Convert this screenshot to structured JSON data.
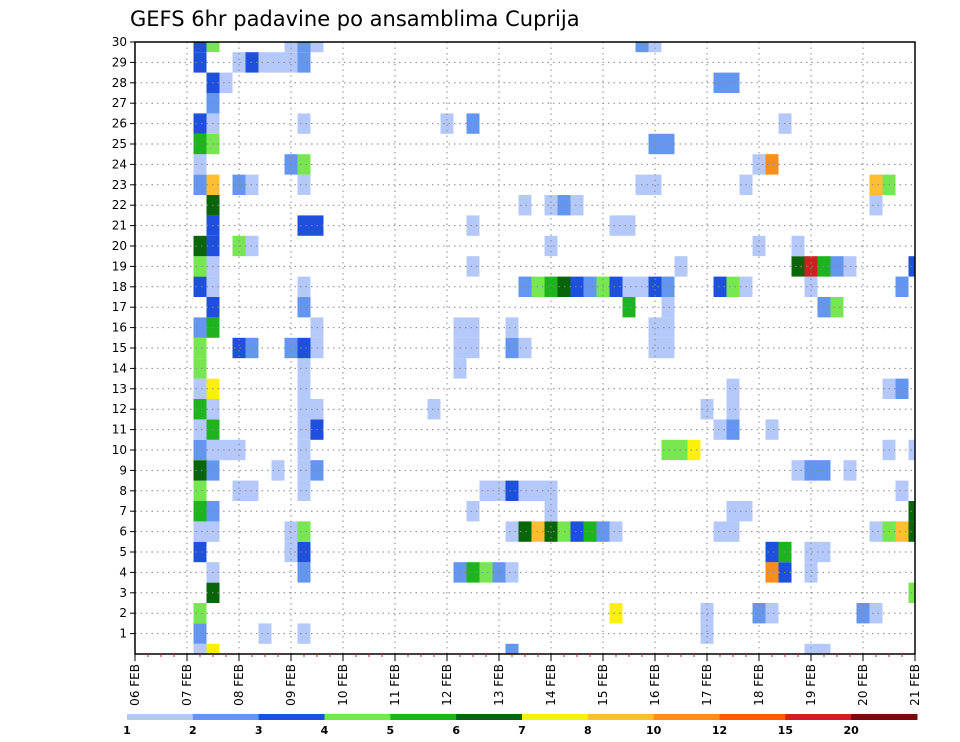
{
  "chart_data": {
    "type": "heatmap",
    "title": "GEFS 6hr padavine po ansamblima Cuprija",
    "xlabel": "",
    "ylabel": "",
    "x_ticks": [
      "06 FEB",
      "07 FEB",
      "08 FEB",
      "09 FEB",
      "10 FEB",
      "11 FEB",
      "12 FEB",
      "13 FEB",
      "14 FEB",
      "15 FEB",
      "16 FEB",
      "17 FEB",
      "18 FEB",
      "19 FEB",
      "20 FEB",
      "21 FEB"
    ],
    "y_ticks": [
      "1",
      "2",
      "3",
      "4",
      "5",
      "6",
      "7",
      "8",
      "9",
      "10",
      "11",
      "12",
      "13",
      "14",
      "15",
      "16",
      "17",
      "18",
      "19",
      "20",
      "21",
      "22",
      "23",
      "24",
      "25",
      "26",
      "27",
      "28",
      "29",
      "30"
    ],
    "xlim_steps": [
      0,
      60
    ],
    "ylim_members": [
      0,
      30
    ],
    "grid": true,
    "legend": {
      "placement": "bottom",
      "thresholds": [
        "1",
        "2",
        "3",
        "4",
        "5",
        "6",
        "7",
        "8",
        "10",
        "12",
        "15",
        "20"
      ],
      "colors": [
        "#b4c8fa",
        "#6496f0",
        "#1e50dc",
        "#78e650",
        "#1eb41e",
        "#0a640a",
        "#faf00a",
        "#ffbe32",
        "#ff8c1e",
        "#ff5a0a",
        "#d21e1e",
        "#780a0a"
      ]
    },
    "cells": [
      {
        "t": 5,
        "m": 0,
        "c": 1
      },
      {
        "t": 6,
        "m": 0,
        "c": 7
      },
      {
        "t": 29,
        "m": 0,
        "c": 2
      },
      {
        "t": 52,
        "m": 0,
        "c": 1
      },
      {
        "t": 53,
        "m": 0,
        "c": 1
      },
      {
        "t": 5,
        "m": 1,
        "c": 2
      },
      {
        "t": 10,
        "m": 1,
        "c": 1
      },
      {
        "t": 13,
        "m": 1,
        "c": 1
      },
      {
        "t": 44,
        "m": 1,
        "c": 1
      },
      {
        "t": 5,
        "m": 2,
        "c": 4
      },
      {
        "t": 37,
        "m": 2,
        "c": 7
      },
      {
        "t": 44,
        "m": 2,
        "c": 1
      },
      {
        "t": 48,
        "m": 2,
        "c": 2
      },
      {
        "t": 49,
        "m": 2,
        "c": 1
      },
      {
        "t": 56,
        "m": 2,
        "c": 2
      },
      {
        "t": 57,
        "m": 2,
        "c": 1
      },
      {
        "t": 6,
        "m": 3,
        "c": 6
      },
      {
        "t": 60,
        "m": 3,
        "c": 4
      },
      {
        "t": 6,
        "m": 4,
        "c": 1
      },
      {
        "t": 13,
        "m": 4,
        "c": 2
      },
      {
        "t": 25,
        "m": 4,
        "c": 2
      },
      {
        "t": 26,
        "m": 4,
        "c": 5
      },
      {
        "t": 27,
        "m": 4,
        "c": 4
      },
      {
        "t": 28,
        "m": 4,
        "c": 2
      },
      {
        "t": 29,
        "m": 4,
        "c": 1
      },
      {
        "t": 49,
        "m": 4,
        "c": 9
      },
      {
        "t": 50,
        "m": 4,
        "c": 3
      },
      {
        "t": 52,
        "m": 4,
        "c": 1
      },
      {
        "t": 5,
        "m": 5,
        "c": 3
      },
      {
        "t": 12,
        "m": 5,
        "c": 1
      },
      {
        "t": 13,
        "m": 5,
        "c": 3
      },
      {
        "t": 49,
        "m": 5,
        "c": 3
      },
      {
        "t": 50,
        "m": 5,
        "c": 5
      },
      {
        "t": 52,
        "m": 5,
        "c": 1
      },
      {
        "t": 53,
        "m": 5,
        "c": 1
      },
      {
        "t": 5,
        "m": 6,
        "c": 1
      },
      {
        "t": 6,
        "m": 6,
        "c": 1
      },
      {
        "t": 12,
        "m": 6,
        "c": 1
      },
      {
        "t": 13,
        "m": 6,
        "c": 4
      },
      {
        "t": 29,
        "m": 6,
        "c": 1
      },
      {
        "t": 30,
        "m": 6,
        "c": 6
      },
      {
        "t": 31,
        "m": 6,
        "c": 8
      },
      {
        "t": 32,
        "m": 6,
        "c": 6
      },
      {
        "t": 33,
        "m": 6,
        "c": 4
      },
      {
        "t": 34,
        "m": 6,
        "c": 3
      },
      {
        "t": 35,
        "m": 6,
        "c": 5
      },
      {
        "t": 36,
        "m": 6,
        "c": 2
      },
      {
        "t": 37,
        "m": 6,
        "c": 1
      },
      {
        "t": 45,
        "m": 6,
        "c": 1
      },
      {
        "t": 46,
        "m": 6,
        "c": 1
      },
      {
        "t": 57,
        "m": 6,
        "c": 1
      },
      {
        "t": 58,
        "m": 6,
        "c": 4
      },
      {
        "t": 59,
        "m": 6,
        "c": 8
      },
      {
        "t": 60,
        "m": 6,
        "c": 6
      },
      {
        "t": 5,
        "m": 7,
        "c": 5
      },
      {
        "t": 6,
        "m": 7,
        "c": 2
      },
      {
        "t": 26,
        "m": 7,
        "c": 1
      },
      {
        "t": 32,
        "m": 7,
        "c": 1
      },
      {
        "t": 46,
        "m": 7,
        "c": 1
      },
      {
        "t": 47,
        "m": 7,
        "c": 1
      },
      {
        "t": 60,
        "m": 7,
        "c": 6
      },
      {
        "t": 5,
        "m": 8,
        "c": 4
      },
      {
        "t": 8,
        "m": 8,
        "c": 1
      },
      {
        "t": 9,
        "m": 8,
        "c": 1
      },
      {
        "t": 13,
        "m": 8,
        "c": 1
      },
      {
        "t": 27,
        "m": 8,
        "c": 1
      },
      {
        "t": 28,
        "m": 8,
        "c": 1
      },
      {
        "t": 29,
        "m": 8,
        "c": 3
      },
      {
        "t": 30,
        "m": 8,
        "c": 1
      },
      {
        "t": 31,
        "m": 8,
        "c": 1
      },
      {
        "t": 32,
        "m": 8,
        "c": 1
      },
      {
        "t": 59,
        "m": 8,
        "c": 1
      },
      {
        "t": 5,
        "m": 9,
        "c": 6
      },
      {
        "t": 6,
        "m": 9,
        "c": 2
      },
      {
        "t": 11,
        "m": 9,
        "c": 1
      },
      {
        "t": 13,
        "m": 9,
        "c": 1
      },
      {
        "t": 14,
        "m": 9,
        "c": 2
      },
      {
        "t": 51,
        "m": 9,
        "c": 1
      },
      {
        "t": 52,
        "m": 9,
        "c": 2
      },
      {
        "t": 53,
        "m": 9,
        "c": 2
      },
      {
        "t": 55,
        "m": 9,
        "c": 1
      },
      {
        "t": 5,
        "m": 10,
        "c": 2
      },
      {
        "t": 6,
        "m": 10,
        "c": 1
      },
      {
        "t": 7,
        "m": 10,
        "c": 1
      },
      {
        "t": 8,
        "m": 10,
        "c": 1
      },
      {
        "t": 13,
        "m": 10,
        "c": 1
      },
      {
        "t": 41,
        "m": 10,
        "c": 4
      },
      {
        "t": 42,
        "m": 10,
        "c": 4
      },
      {
        "t": 43,
        "m": 10,
        "c": 7
      },
      {
        "t": 58,
        "m": 10,
        "c": 1
      },
      {
        "t": 60,
        "m": 10,
        "c": 1
      },
      {
        "t": 5,
        "m": 11,
        "c": 1
      },
      {
        "t": 6,
        "m": 11,
        "c": 5
      },
      {
        "t": 13,
        "m": 11,
        "c": 1
      },
      {
        "t": 14,
        "m": 11,
        "c": 3
      },
      {
        "t": 45,
        "m": 11,
        "c": 1
      },
      {
        "t": 46,
        "m": 11,
        "c": 2
      },
      {
        "t": 49,
        "m": 11,
        "c": 1
      },
      {
        "t": 5,
        "m": 12,
        "c": 5
      },
      {
        "t": 6,
        "m": 12,
        "c": 1
      },
      {
        "t": 13,
        "m": 12,
        "c": 1
      },
      {
        "t": 14,
        "m": 12,
        "c": 1
      },
      {
        "t": 23,
        "m": 12,
        "c": 1
      },
      {
        "t": 44,
        "m": 12,
        "c": 1
      },
      {
        "t": 46,
        "m": 12,
        "c": 1
      },
      {
        "t": 5,
        "m": 13,
        "c": 1
      },
      {
        "t": 6,
        "m": 13,
        "c": 7
      },
      {
        "t": 13,
        "m": 13,
        "c": 1
      },
      {
        "t": 46,
        "m": 13,
        "c": 1
      },
      {
        "t": 58,
        "m": 13,
        "c": 1
      },
      {
        "t": 59,
        "m": 13,
        "c": 2
      },
      {
        "t": 5,
        "m": 14,
        "c": 4
      },
      {
        "t": 13,
        "m": 14,
        "c": 1
      },
      {
        "t": 25,
        "m": 14,
        "c": 1
      },
      {
        "t": 5,
        "m": 15,
        "c": 4
      },
      {
        "t": 8,
        "m": 15,
        "c": 3
      },
      {
        "t": 9,
        "m": 15,
        "c": 2
      },
      {
        "t": 12,
        "m": 15,
        "c": 2
      },
      {
        "t": 13,
        "m": 15,
        "c": 3
      },
      {
        "t": 14,
        "m": 15,
        "c": 1
      },
      {
        "t": 25,
        "m": 15,
        "c": 1
      },
      {
        "t": 26,
        "m": 15,
        "c": 1
      },
      {
        "t": 29,
        "m": 15,
        "c": 2
      },
      {
        "t": 30,
        "m": 15,
        "c": 1
      },
      {
        "t": 40,
        "m": 15,
        "c": 1
      },
      {
        "t": 41,
        "m": 15,
        "c": 1
      },
      {
        "t": 5,
        "m": 16,
        "c": 2
      },
      {
        "t": 6,
        "m": 16,
        "c": 5
      },
      {
        "t": 14,
        "m": 16,
        "c": 1
      },
      {
        "t": 25,
        "m": 16,
        "c": 1
      },
      {
        "t": 26,
        "m": 16,
        "c": 1
      },
      {
        "t": 29,
        "m": 16,
        "c": 1
      },
      {
        "t": 40,
        "m": 16,
        "c": 1
      },
      {
        "t": 41,
        "m": 16,
        "c": 1
      },
      {
        "t": 6,
        "m": 17,
        "c": 3
      },
      {
        "t": 13,
        "m": 17,
        "c": 2
      },
      {
        "t": 38,
        "m": 17,
        "c": 5
      },
      {
        "t": 41,
        "m": 17,
        "c": 1
      },
      {
        "t": 53,
        "m": 17,
        "c": 2
      },
      {
        "t": 54,
        "m": 17,
        "c": 4
      },
      {
        "t": 5,
        "m": 18,
        "c": 3
      },
      {
        "t": 6,
        "m": 18,
        "c": 1
      },
      {
        "t": 13,
        "m": 18,
        "c": 1
      },
      {
        "t": 30,
        "m": 18,
        "c": 2
      },
      {
        "t": 31,
        "m": 18,
        "c": 4
      },
      {
        "t": 32,
        "m": 18,
        "c": 5
      },
      {
        "t": 33,
        "m": 18,
        "c": 6
      },
      {
        "t": 34,
        "m": 18,
        "c": 3
      },
      {
        "t": 35,
        "m": 18,
        "c": 2
      },
      {
        "t": 36,
        "m": 18,
        "c": 4
      },
      {
        "t": 37,
        "m": 18,
        "c": 3
      },
      {
        "t": 38,
        "m": 18,
        "c": 1
      },
      {
        "t": 39,
        "m": 18,
        "c": 1
      },
      {
        "t": 40,
        "m": 18,
        "c": 3
      },
      {
        "t": 41,
        "m": 18,
        "c": 2
      },
      {
        "t": 45,
        "m": 18,
        "c": 3
      },
      {
        "t": 46,
        "m": 18,
        "c": 4
      },
      {
        "t": 47,
        "m": 18,
        "c": 1
      },
      {
        "t": 52,
        "m": 18,
        "c": 1
      },
      {
        "t": 59,
        "m": 18,
        "c": 2
      },
      {
        "t": 5,
        "m": 19,
        "c": 4
      },
      {
        "t": 6,
        "m": 19,
        "c": 1
      },
      {
        "t": 26,
        "m": 19,
        "c": 1
      },
      {
        "t": 42,
        "m": 19,
        "c": 1
      },
      {
        "t": 51,
        "m": 19,
        "c": 6
      },
      {
        "t": 52,
        "m": 19,
        "c": 11
      },
      {
        "t": 53,
        "m": 19,
        "c": 5
      },
      {
        "t": 54,
        "m": 19,
        "c": 2
      },
      {
        "t": 55,
        "m": 19,
        "c": 1
      },
      {
        "t": 60,
        "m": 19,
        "c": 3
      },
      {
        "t": 5,
        "m": 20,
        "c": 6
      },
      {
        "t": 6,
        "m": 20,
        "c": 3
      },
      {
        "t": 8,
        "m": 20,
        "c": 4
      },
      {
        "t": 9,
        "m": 20,
        "c": 1
      },
      {
        "t": 32,
        "m": 20,
        "c": 1
      },
      {
        "t": 48,
        "m": 20,
        "c": 1
      },
      {
        "t": 51,
        "m": 20,
        "c": 1
      },
      {
        "t": 6,
        "m": 21,
        "c": 3
      },
      {
        "t": 13,
        "m": 21,
        "c": 3
      },
      {
        "t": 14,
        "m": 21,
        "c": 3
      },
      {
        "t": 26,
        "m": 21,
        "c": 1
      },
      {
        "t": 37,
        "m": 21,
        "c": 1
      },
      {
        "t": 38,
        "m": 21,
        "c": 1
      },
      {
        "t": 6,
        "m": 22,
        "c": 6
      },
      {
        "t": 30,
        "m": 22,
        "c": 1
      },
      {
        "t": 32,
        "m": 22,
        "c": 1
      },
      {
        "t": 33,
        "m": 22,
        "c": 2
      },
      {
        "t": 34,
        "m": 22,
        "c": 1
      },
      {
        "t": 57,
        "m": 22,
        "c": 1
      },
      {
        "t": 5,
        "m": 23,
        "c": 2
      },
      {
        "t": 6,
        "m": 23,
        "c": 8
      },
      {
        "t": 8,
        "m": 23,
        "c": 2
      },
      {
        "t": 9,
        "m": 23,
        "c": 1
      },
      {
        "t": 13,
        "m": 23,
        "c": 1
      },
      {
        "t": 39,
        "m": 23,
        "c": 1
      },
      {
        "t": 40,
        "m": 23,
        "c": 1
      },
      {
        "t": 47,
        "m": 23,
        "c": 1
      },
      {
        "t": 57,
        "m": 23,
        "c": 8
      },
      {
        "t": 58,
        "m": 23,
        "c": 4
      },
      {
        "t": 5,
        "m": 24,
        "c": 1
      },
      {
        "t": 12,
        "m": 24,
        "c": 2
      },
      {
        "t": 13,
        "m": 24,
        "c": 4
      },
      {
        "t": 48,
        "m": 24,
        "c": 1
      },
      {
        "t": 49,
        "m": 24,
        "c": 9
      },
      {
        "t": 5,
        "m": 25,
        "c": 5
      },
      {
        "t": 6,
        "m": 25,
        "c": 4
      },
      {
        "t": 40,
        "m": 25,
        "c": 2
      },
      {
        "t": 41,
        "m": 25,
        "c": 2
      },
      {
        "t": 5,
        "m": 26,
        "c": 3
      },
      {
        "t": 6,
        "m": 26,
        "c": 1
      },
      {
        "t": 13,
        "m": 26,
        "c": 1
      },
      {
        "t": 24,
        "m": 26,
        "c": 1
      },
      {
        "t": 26,
        "m": 26,
        "c": 2
      },
      {
        "t": 50,
        "m": 26,
        "c": 1
      },
      {
        "t": 6,
        "m": 27,
        "c": 2
      },
      {
        "t": 6,
        "m": 28,
        "c": 3
      },
      {
        "t": 7,
        "m": 28,
        "c": 1
      },
      {
        "t": 45,
        "m": 28,
        "c": 2
      },
      {
        "t": 46,
        "m": 28,
        "c": 2
      },
      {
        "t": 5,
        "m": 29,
        "c": 3
      },
      {
        "t": 8,
        "m": 29,
        "c": 1
      },
      {
        "t": 9,
        "m": 29,
        "c": 3
      },
      {
        "t": 10,
        "m": 29,
        "c": 1
      },
      {
        "t": 11,
        "m": 29,
        "c": 1
      },
      {
        "t": 12,
        "m": 29,
        "c": 1
      },
      {
        "t": 13,
        "m": 29,
        "c": 2
      },
      {
        "t": 5,
        "m": 30,
        "c": 3
      },
      {
        "t": 6,
        "m": 30,
        "c": 4
      },
      {
        "t": 12,
        "m": 30,
        "c": 1
      },
      {
        "t": 13,
        "m": 30,
        "c": 2
      },
      {
        "t": 14,
        "m": 30,
        "c": 1
      },
      {
        "t": 39,
        "m": 30,
        "c": 2
      },
      {
        "t": 40,
        "m": 30,
        "c": 1
      }
    ]
  }
}
